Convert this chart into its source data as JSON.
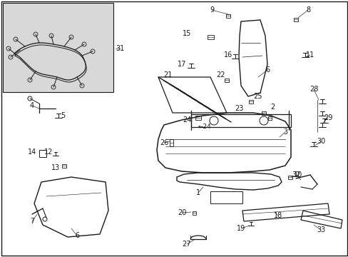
{
  "bg": "#ffffff",
  "lc": "#1a1a1a",
  "inset_bg": "#d8d8d8",
  "fs": 7.0,
  "figw": 4.89,
  "figh": 3.6,
  "dpi": 100
}
